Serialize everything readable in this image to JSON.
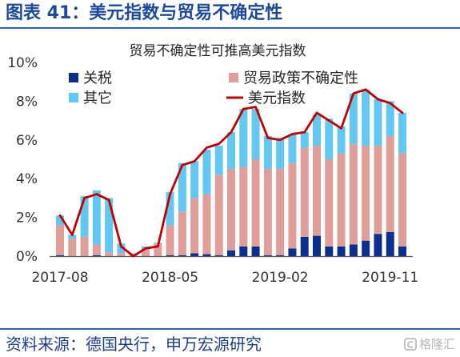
{
  "figure": {
    "title": "图表 41：美元指数与贸易不确定性",
    "source": "资料来源：德国央行，申万宏源研究"
  },
  "watermark": {
    "text": "格隆汇",
    "icon": "gelonghui-logo-icon"
  },
  "colors": {
    "accent": "#1d4a9c",
    "rule": "#2f62b3",
    "source": "#1f3e85"
  },
  "chart_data": {
    "type": "bar",
    "stacked": true,
    "title": "贸易不确定性可推高美元指数",
    "xlabel": "",
    "ylabel": "",
    "x": [
      "2017-08",
      "2017-09",
      "2017-10",
      "2017-11",
      "2017-12",
      "2018-01",
      "2018-02",
      "2018-03",
      "2018-04",
      "2018-05",
      "2018-06",
      "2018-07",
      "2018-08",
      "2018-09",
      "2018-10",
      "2018-11",
      "2018-12",
      "2019-01",
      "2019-02",
      "2019-03",
      "2019-04",
      "2019-05",
      "2019-06",
      "2019-07",
      "2019-08",
      "2019-09",
      "2019-10",
      "2019-11",
      "2019-12"
    ],
    "x_tick_labels": [
      "2017-08",
      "2018-05",
      "2019-02",
      "2019-11"
    ],
    "y_tick_labels": [
      "0%",
      "2%",
      "4%",
      "6%",
      "8%",
      "10%"
    ],
    "ylim": [
      0,
      10
    ],
    "grid": false,
    "legend_position": "top",
    "series": [
      {
        "name": "关税",
        "type": "bar",
        "color": "#0b2f8e",
        "values": [
          0.05,
          0,
          0,
          0.05,
          0,
          0,
          0,
          0,
          0,
          0.05,
          0.05,
          0.15,
          0.1,
          0.05,
          0.3,
          0.5,
          0.5,
          0.05,
          0.05,
          0.4,
          1.0,
          1.05,
          0.5,
          0.5,
          0.6,
          0.8,
          1.15,
          1.25,
          0.5
        ]
      },
      {
        "name": "贸易政策不确定性",
        "type": "bar",
        "color": "#e09e9b",
        "values": [
          1.55,
          0.9,
          1.0,
          0.55,
          0.2,
          0.15,
          0.1,
          0.35,
          0.65,
          1.55,
          2.25,
          2.85,
          3.1,
          4.15,
          4.2,
          4.1,
          4.5,
          4.45,
          4.45,
          4.4,
          4.6,
          4.65,
          4.5,
          4.8,
          5.2,
          4.9,
          4.55,
          4.95,
          4.8
        ]
      },
      {
        "name": "其它",
        "type": "bar",
        "color": "#62c8f2",
        "values": [
          0.5,
          0.2,
          2.1,
          2.8,
          2.8,
          0.5,
          0.05,
          0.15,
          0.05,
          1.7,
          2.5,
          1.9,
          2.3,
          1.5,
          1.9,
          3.0,
          2.6,
          1.7,
          1.6,
          1.5,
          0.8,
          1.6,
          2.1,
          1.4,
          2.6,
          2.9,
          2.4,
          1.8,
          2.1
        ]
      },
      {
        "name": "美元指数",
        "type": "line",
        "color": "#c00000",
        "values": [
          2.1,
          1.1,
          3.0,
          3.2,
          2.9,
          0.5,
          0.0,
          0.4,
          0.5,
          3.2,
          4.7,
          4.9,
          5.6,
          5.8,
          6.4,
          7.6,
          7.7,
          6.1,
          6.0,
          6.3,
          6.4,
          7.4,
          7.0,
          6.6,
          8.4,
          8.6,
          8.1,
          7.9,
          7.4
        ]
      }
    ]
  }
}
